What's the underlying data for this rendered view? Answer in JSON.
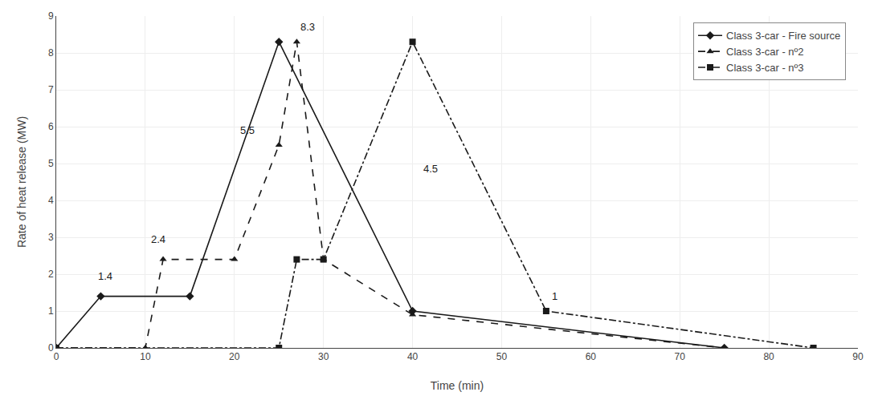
{
  "chart_data": {
    "type": "line",
    "x_label": "Time (min)",
    "y_label": "Rate of heat release (MW)",
    "color": "#1a1a1a",
    "series": [
      {
        "name": "Class 3-car - Fire source",
        "x": [
          0,
          5,
          15,
          25,
          40,
          75
        ],
        "values": [
          0,
          1.4,
          1.4,
          8.3,
          1.0,
          0
        ],
        "line_style": "solid",
        "marker": "diamond"
      },
      {
        "name": "Class 3-car - nº2",
        "x": [
          0,
          10,
          12,
          20,
          25,
          27,
          30,
          40,
          75
        ],
        "values": [
          0,
          0,
          2.4,
          2.4,
          5.5,
          8.3,
          2.4,
          0.9,
          0
        ],
        "line_style": "dash",
        "marker": "triangle-up"
      },
      {
        "name": "Class 3-car - nº3",
        "x": [
          0,
          25,
          27,
          30,
          40,
          55,
          85
        ],
        "values": [
          0,
          0,
          2.4,
          2.4,
          8.3,
          1.0,
          0
        ],
        "line_style": "dashdot",
        "marker": "square"
      }
    ],
    "annotations": [
      {
        "text": "1.4",
        "x": 4.5,
        "y": 1.75
      },
      {
        "text": "5.5",
        "x": 20.5,
        "y": 5.7
      },
      {
        "text": "2.4",
        "x": 10.5,
        "y": 2.75
      },
      {
        "text": "8.3",
        "x": 27.2,
        "y": 8.5
      },
      {
        "text": "4.5",
        "x": 41.0,
        "y": 4.65
      },
      {
        "text": "1",
        "x": 55.5,
        "y": 1.2
      }
    ],
    "xlim": [
      0,
      90
    ],
    "ylim": [
      0,
      9
    ],
    "xticks": [
      0,
      10,
      20,
      30,
      40,
      50,
      60,
      70,
      80,
      90
    ],
    "yticks": [
      0,
      1,
      2,
      3,
      4,
      5,
      6,
      7,
      8,
      9
    ],
    "grid": true,
    "legend": "upper right"
  }
}
